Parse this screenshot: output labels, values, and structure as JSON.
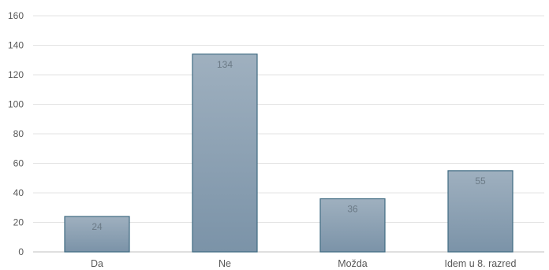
{
  "chart_data": {
    "type": "bar",
    "title": "",
    "categories": [
      "Da",
      "Ne",
      "Možda",
      "Idem u 8. razred"
    ],
    "values": [
      24,
      134,
      36,
      55
    ],
    "ylim": [
      0,
      160
    ],
    "yticks": [
      0,
      20,
      40,
      60,
      80,
      100,
      120,
      140,
      160
    ],
    "grid": true,
    "data_labels": true,
    "colors": {
      "bar_top": "#9fb0bf",
      "bar_bottom": "#7b93a8",
      "bar_border": "#3f6b82",
      "grid": "#e3e3e3",
      "text": "#595959"
    }
  }
}
